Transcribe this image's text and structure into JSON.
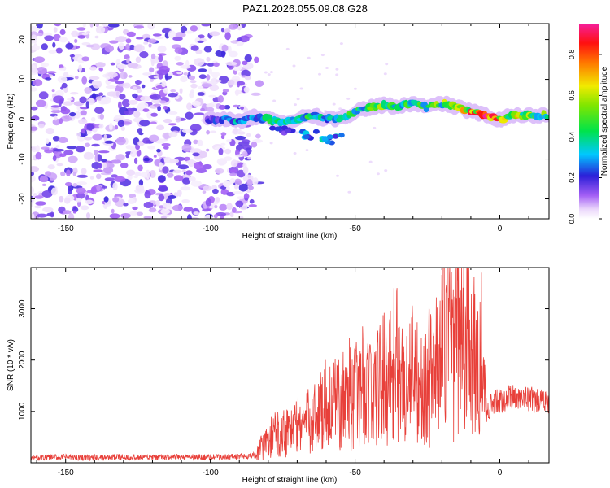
{
  "figure_title": "PAZ1.2026.055.09.08.G28",
  "chart_data": [
    {
      "type": "heatmap",
      "title": "PAZ1.2026.055.09.08.G28",
      "xlabel": "Height of straight line (km)",
      "ylabel": "Frequency (Hz)",
      "xlim": [
        -162,
        17
      ],
      "ylim": [
        -25,
        24
      ],
      "xticks": [
        -150,
        -100,
        -50,
        0
      ],
      "xtick_labels": [
        "-150",
        "-100",
        "-50",
        "0"
      ],
      "yticks": [
        -20,
        -10,
        0,
        10,
        20
      ],
      "ytick_labels": [
        "-20",
        "-10",
        "0",
        "10",
        "20"
      ],
      "colorbar": {
        "label": "Normalized spectral amplitude",
        "range": [
          0,
          0.95
        ],
        "ticks": [
          0.0,
          0.2,
          0.4,
          0.6,
          0.8
        ],
        "tick_labels": [
          "0.0",
          "0.2",
          "0.4",
          "0.6",
          "0.8"
        ],
        "colormap": "hsv-like (white-violet-blue-cyan-green-yellow-red-magenta)"
      },
      "noise_region": {
        "x_range": [
          -162,
          -83
        ],
        "y_range": [
          -25,
          24
        ],
        "amplitude_range": [
          0.02,
          0.2
        ]
      },
      "signal_track": {
        "x": [
          -101,
          -95,
          -90,
          -85,
          -80,
          -75,
          -70,
          -65,
          -60,
          -55,
          -50,
          -45,
          -40,
          -35,
          -30,
          -25,
          -20,
          -15,
          -10,
          -5,
          0,
          5,
          10,
          17
        ],
        "frequency": [
          0,
          0,
          -0.5,
          0.5,
          0,
          -1,
          0,
          1,
          0,
          0,
          2,
          3,
          3.5,
          3,
          4,
          3,
          4,
          3,
          2,
          1,
          0,
          1,
          1,
          1
        ],
        "amplitude": [
          0.15,
          0.25,
          0.35,
          0.3,
          0.4,
          0.45,
          0.35,
          0.4,
          0.35,
          0.4,
          0.45,
          0.45,
          0.5,
          0.45,
          0.5,
          0.45,
          0.5,
          0.55,
          0.75,
          0.8,
          0.7,
          0.6,
          0.55,
          0.5
        ]
      },
      "secondary_blobs": [
        {
          "x": -75,
          "frequency": -3,
          "amplitude": 0.25
        },
        {
          "x": -65,
          "frequency": -4,
          "amplitude": 0.3
        },
        {
          "x": -58,
          "frequency": -5,
          "amplitude": 0.35
        }
      ]
    },
    {
      "type": "line",
      "xlabel": "Height of straight line (km)",
      "ylabel": "SNR (10 * v/v)",
      "xlim": [
        -162,
        17
      ],
      "ylim": [
        0,
        3800
      ],
      "xticks": [
        -150,
        -100,
        -50,
        0
      ],
      "xtick_labels": [
        "-150",
        "-100",
        "-50",
        "0"
      ],
      "yticks": [
        1000,
        2000,
        3000
      ],
      "ytick_labels": [
        "1000",
        "2000",
        "3000"
      ],
      "series": [
        {
          "name": "SNR",
          "color": "#e8403a",
          "x": [
            -162,
            -150,
            -140,
            -130,
            -120,
            -110,
            -100,
            -90,
            -84,
            -83,
            -78,
            -72,
            -65,
            -60,
            -56,
            -52,
            -50,
            -47,
            -44,
            -40,
            -36,
            -33,
            -30,
            -27,
            -24,
            -21,
            -18,
            -16,
            -13,
            -10,
            -8,
            -6,
            -5,
            -3,
            0,
            5,
            10,
            17
          ],
          "values": [
            100,
            110,
            100,
            110,
            100,
            110,
            110,
            120,
            150,
            300,
            600,
            750,
            900,
            1300,
            1200,
            1500,
            1400,
            1700,
            1500,
            1800,
            2200,
            1600,
            2000,
            1500,
            1900,
            2100,
            3300,
            2500,
            3000,
            2300,
            2100,
            2300,
            1000,
            1150,
            1200,
            1300,
            1250,
            1150
          ]
        }
      ]
    }
  ]
}
